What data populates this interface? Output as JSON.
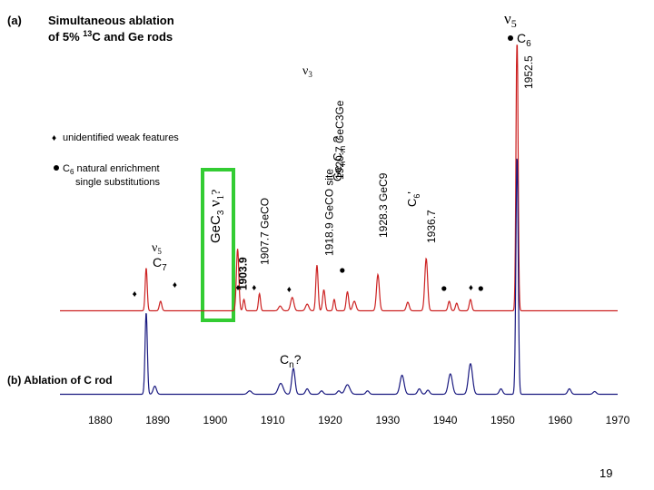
{
  "chart_data": {
    "type": "line",
    "panel_a": {
      "tag": "(a)",
      "title_line1": "Simultaneous ablation",
      "title_line2_pre": "of  5% ",
      "title_isotope_mass": "13",
      "title_line2_post": "C and Ge rods",
      "legend_diamond": "unidentified weak features",
      "legend_dot_line1": "C",
      "legend_dot_sub": "6",
      "legend_dot_line1_post": " natural enrichment",
      "legend_dot_line2": "single substitutions"
    },
    "panel_b": {
      "title": "(b) Ablation of C rod",
      "cn_label": "C",
      "cn_sub": "n",
      "cn_q": "?"
    },
    "x_ticks": [
      "1880",
      "1890",
      "1900",
      "1910",
      "1920",
      "1930",
      "1940",
      "1950",
      "1960",
      "1970"
    ],
    "xlim": [
      1873,
      1970
    ],
    "series": [
      {
        "color": "#cc2222",
        "baseline": 0.1,
        "peaks": [
          {
            "x": 1888.0,
            "h": 0.45,
            "w": 0.25
          },
          {
            "x": 1890.5,
            "h": 0.1,
            "w": 0.3
          },
          {
            "x": 1903.9,
            "h": 0.65,
            "w": 0.3
          },
          {
            "x": 1905.0,
            "h": 0.12,
            "w": 0.25
          },
          {
            "x": 1907.7,
            "h": 0.18,
            "w": 0.25
          },
          {
            "x": 1911.3,
            "h": 0.05,
            "w": 0.4
          },
          {
            "x": 1913.4,
            "h": 0.14,
            "w": 0.4
          },
          {
            "x": 1916.0,
            "h": 0.07,
            "w": 0.4
          },
          {
            "x": 1917.7,
            "h": 0.48,
            "w": 0.28
          },
          {
            "x": 1918.9,
            "h": 0.22,
            "w": 0.3
          },
          {
            "x": 1920.7,
            "h": 0.12,
            "w": 0.25
          },
          {
            "x": 1923.0,
            "h": 0.2,
            "w": 0.3
          },
          {
            "x": 1924.2,
            "h": 0.1,
            "w": 0.4
          },
          {
            "x": 1928.3,
            "h": 0.38,
            "w": 0.35
          },
          {
            "x": 1933.5,
            "h": 0.09,
            "w": 0.35
          },
          {
            "x": 1936.7,
            "h": 0.55,
            "w": 0.35
          },
          {
            "x": 1940.7,
            "h": 0.1,
            "w": 0.3
          },
          {
            "x": 1942.0,
            "h": 0.08,
            "w": 0.3
          },
          {
            "x": 1944.4,
            "h": 0.12,
            "w": 0.3
          },
          {
            "x": 1952.5,
            "h": 3.0,
            "w": 0.25
          }
        ]
      },
      {
        "color": "#1a1a80",
        "baseline": 0.1,
        "peaks": [
          {
            "x": 1888.0,
            "h": 1.2,
            "w": 0.28
          },
          {
            "x": 1889.5,
            "h": 0.12,
            "w": 0.4
          },
          {
            "x": 1906.0,
            "h": 0.05,
            "w": 0.5
          },
          {
            "x": 1911.4,
            "h": 0.16,
            "w": 0.6
          },
          {
            "x": 1913.6,
            "h": 0.38,
            "w": 0.4
          },
          {
            "x": 1916.0,
            "h": 0.08,
            "w": 0.4
          },
          {
            "x": 1918.5,
            "h": 0.05,
            "w": 0.4
          },
          {
            "x": 1921.5,
            "h": 0.05,
            "w": 0.4
          },
          {
            "x": 1923.0,
            "h": 0.14,
            "w": 0.6
          },
          {
            "x": 1926.5,
            "h": 0.05,
            "w": 0.4
          },
          {
            "x": 1932.5,
            "h": 0.28,
            "w": 0.5
          },
          {
            "x": 1935.5,
            "h": 0.08,
            "w": 0.4
          },
          {
            "x": 1937.0,
            "h": 0.06,
            "w": 0.4
          },
          {
            "x": 1940.9,
            "h": 0.3,
            "w": 0.5
          },
          {
            "x": 1944.4,
            "h": 0.45,
            "w": 0.5
          },
          {
            "x": 1949.7,
            "h": 0.08,
            "w": 0.4
          },
          {
            "x": 1952.5,
            "h": 3.5,
            "w": 0.28
          },
          {
            "x": 1961.6,
            "h": 0.08,
            "w": 0.4
          },
          {
            "x": 1966.0,
            "h": 0.04,
            "w": 0.4
          }
        ]
      }
    ],
    "peak_labels": [
      {
        "text": "1903.9",
        "x": 1903.9,
        "bold": true
      },
      {
        "text": "1907.7 GeCO",
        "x": 1907.7
      },
      {
        "text": "1918.9 GeCO site",
        "x": 1918.9
      },
      {
        "text": "1920.7  GeC3Ge",
        "x": 1920.7
      },
      {
        "text": "1928.3  GeC9",
        "x": 1928.3
      },
      {
        "text": "1936.7",
        "x": 1936.7
      },
      {
        "text": "1952.5",
        "x": 1952.5
      }
    ],
    "annotations": {
      "v5_symbol": "ν",
      "v5_sub": "5",
      "c6_label": "C",
      "c6_sub": "6",
      "v3_symbol": "ν",
      "v3_sub": "3",
      "v5c7_sub": "5",
      "c7_label": "C",
      "c7_sub": "7",
      "v1_symbol": "ν",
      "v1_sub": "1",
      "v1_q": "?",
      "gec3_pre": "GeC",
      "gec3_sub": "3",
      "gencm_pre": "Ge",
      "gencm_sub_n": "n",
      "gencm_c": "C",
      "gencm_sub_m": "m",
      "gencm_q": " ?",
      "c6_vert": "C",
      "c6_vert_sub": "6",
      "c6_vert_extra": "'",
      "ge_c3_c": "C",
      "ge_c3_sub": "3",
      "ge_c3_post": "Ge"
    },
    "markers": {
      "diamonds": [
        1886.2,
        1893.2,
        1904.2,
        1907.0,
        1913.1,
        1944.7
      ],
      "dots": [
        1922.1,
        1939.8,
        1946.2
      ]
    }
  },
  "footer": {
    "slide_number": "19"
  }
}
